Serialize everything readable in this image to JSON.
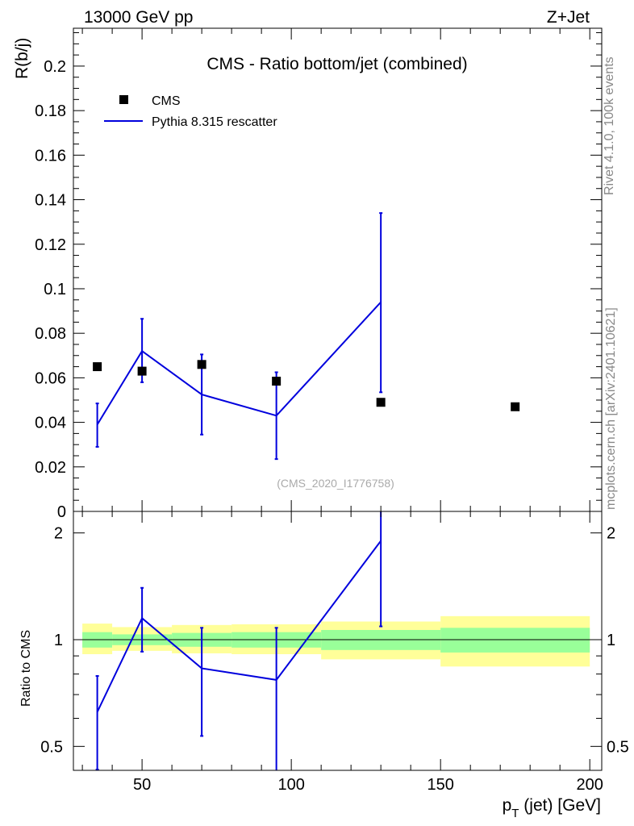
{
  "header": {
    "left": "13000 GeV pp",
    "right": "Z+Jet"
  },
  "side_labels": {
    "rivet": "Rivet 4.1.0,  100k events",
    "mcplots": "mcplots.cern.ch [arXiv:2401.10621]"
  },
  "chart_data": {
    "type": "scatter",
    "title": "CMS - Ratio bottom/jet (combined)",
    "analysis_id": "(CMS_2020_I1776758)",
    "xlabel_main": "p",
    "xlabel_sub": "T",
    "xlabel_rest": " (jet) [GeV]",
    "ylabel_top": "R(b/j)",
    "ylabel_bottom": "Ratio to CMS",
    "xlim": [
      27,
      204
    ],
    "ylim_top": [
      0,
      0.217
    ],
    "ylim_bottom_log": [
      0.428,
      2.3
    ],
    "x_ticks": [
      50,
      100,
      150,
      200
    ],
    "y_ticks_top": [
      0,
      0.02,
      0.04,
      0.06,
      0.08,
      0.1,
      0.12,
      0.14,
      0.16,
      0.18,
      0.2
    ],
    "y_tick_labels_top": [
      "0",
      "0.02",
      "0.04",
      "0.06",
      "0.08",
      "0.1",
      "0.12",
      "0.14",
      "0.16",
      "0.18",
      "0.2"
    ],
    "y_ticks_bottom": [
      0.5,
      1,
      2
    ],
    "y_tick_labels_bottom": [
      "0.5",
      "1",
      "2"
    ],
    "legend": {
      "placement": "top-left",
      "data_label": "CMS",
      "mc_label": "Pythia 8.315 rescatter"
    },
    "colors": {
      "mc": "#0000dd",
      "data": "#000000",
      "band_inner": "#99ff99",
      "band_outer": "#ffff99"
    },
    "data": {
      "name": "CMS",
      "x": [
        35,
        50,
        70,
        95,
        130,
        175
      ],
      "y": [
        0.065,
        0.063,
        0.066,
        0.0585,
        0.049,
        0.047
      ]
    },
    "mc": {
      "name": "Pythia 8.315 rescatter",
      "x": [
        35,
        50,
        70,
        95,
        130
      ],
      "y": [
        0.039,
        0.072,
        0.0525,
        0.043,
        0.094
      ],
      "err_low": [
        0.029,
        0.058,
        0.0345,
        0.0235,
        0.0535
      ],
      "err_high": [
        0.0485,
        0.0865,
        0.0705,
        0.0625,
        0.134
      ]
    },
    "ratio": {
      "x": [
        35,
        50,
        70,
        95,
        130
      ],
      "y": [
        0.625,
        1.15,
        0.83,
        0.77,
        1.9
      ],
      "err_low": [
        0.43,
        0.925,
        0.535,
        0.405,
        1.09
      ],
      "err_high": [
        0.79,
        1.4,
        1.08,
        1.08,
        2.5
      ]
    },
    "bands": [
      {
        "x0": 30,
        "x1": 40,
        "inner": [
          0.95,
          1.05
        ],
        "outer": [
          0.91,
          1.11
        ]
      },
      {
        "x0": 40,
        "x1": 60,
        "inner": [
          0.965,
          1.035
        ],
        "outer": [
          0.93,
          1.085
        ]
      },
      {
        "x0": 60,
        "x1": 80,
        "inner": [
          0.955,
          1.045
        ],
        "outer": [
          0.915,
          1.1
        ]
      },
      {
        "x0": 80,
        "x1": 110,
        "inner": [
          0.95,
          1.05
        ],
        "outer": [
          0.91,
          1.105
        ]
      },
      {
        "x0": 110,
        "x1": 150,
        "inner": [
          0.935,
          1.065
        ],
        "outer": [
          0.88,
          1.125
        ]
      },
      {
        "x0": 150,
        "x1": 200,
        "inner": [
          0.92,
          1.08
        ],
        "outer": [
          0.84,
          1.165
        ]
      }
    ]
  }
}
